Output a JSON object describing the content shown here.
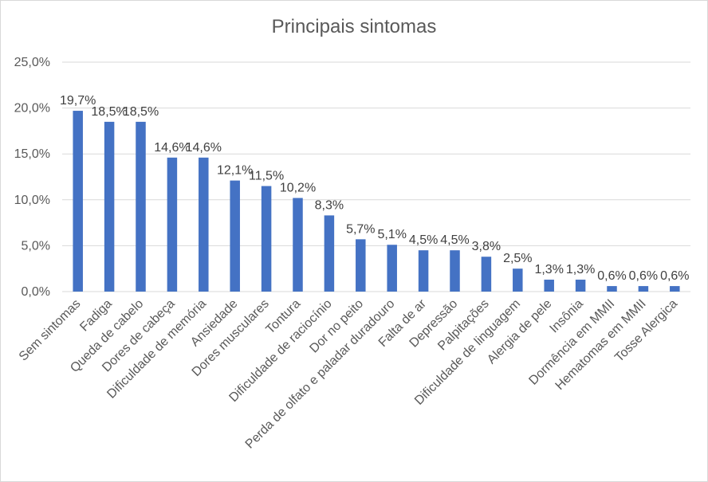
{
  "chart_data": {
    "type": "bar",
    "title": "Principais sintomas",
    "xlabel": "",
    "ylabel": "",
    "ylim": [
      0,
      25
    ],
    "ytick_values": [
      0,
      5,
      10,
      15,
      20,
      25
    ],
    "ytick_labels": [
      "0,0%",
      "5,0%",
      "10,0%",
      "15,0%",
      "20,0%",
      "25,0%"
    ],
    "grid": true,
    "legend": "none",
    "bar_color": "#4472c4",
    "categories": [
      "Sem sintomas",
      "Fadiga",
      "Queda de cabelo",
      "Dores de cabeça",
      "Dificuldade de memória",
      "Ansiedade",
      "Dores musculares",
      "Tontura",
      "Dificuldade de raciocínio",
      "Dor no peito",
      "Perda de olfato e paladar duradouro",
      "Falta de ar",
      "Depressão",
      "Palpitações",
      "Dificuldade de linguagem",
      "Alergia de pele",
      "Insônia",
      "Dormência em MMII",
      "Hematomas em MMII",
      "Tosse Alergica"
    ],
    "values": [
      19.7,
      18.5,
      18.5,
      14.6,
      14.6,
      12.1,
      11.5,
      10.2,
      8.3,
      5.7,
      5.1,
      4.5,
      4.5,
      3.8,
      2.5,
      1.3,
      1.3,
      0.6,
      0.6,
      0.6
    ],
    "value_labels": [
      "19,7%",
      "18,5%",
      "18,5%",
      "14,6%",
      "14,6%",
      "12,1%",
      "11,5%",
      "10,2%",
      "8,3%",
      "5,7%",
      "5,1%",
      "4,5%",
      "4,5%",
      "3,8%",
      "2,5%",
      "1,3%",
      "1,3%",
      "0,6%",
      "0,6%",
      "0,6%"
    ]
  }
}
